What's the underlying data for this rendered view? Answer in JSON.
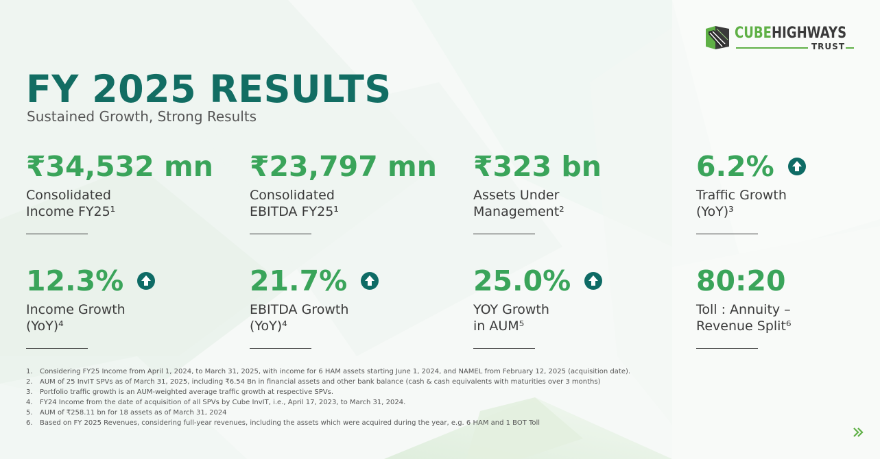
{
  "logo": {
    "word_left": "CUBE",
    "word_right": "HIGHWAYS",
    "sub": "TRUST",
    "brand_green": "#5fb046",
    "brand_dark": "#3a3a3a"
  },
  "header": {
    "title": "FY 2025 RESULTS",
    "subtitle": "Sustained Growth, Strong Results",
    "title_color": "#126d63"
  },
  "metrics": [
    {
      "value": "₹34,532 mn",
      "label_line1": "Consolidated",
      "label_line2": "Income FY25¹",
      "arrow": false
    },
    {
      "value": "₹23,797 mn",
      "label_line1": "Consolidated",
      "label_line2": "EBITDA FY25¹",
      "arrow": false
    },
    {
      "value": "₹323 bn",
      "label_line1": "Assets Under",
      "label_line2": "Management²",
      "arrow": false
    },
    {
      "value": "6.2%",
      "label_line1": "Traffic Growth",
      "label_line2": "(YoY)³",
      "arrow": true
    },
    {
      "value": "12.3%",
      "label_line1": "Income Growth",
      "label_line2": "(YoY)⁴",
      "arrow": true
    },
    {
      "value": "21.7%",
      "label_line1": "EBITDA Growth",
      "label_line2": "(YoY)⁴",
      "arrow": true
    },
    {
      "value": "25.0%",
      "label_line1": "YOY Growth",
      "label_line2": "in AUM⁵",
      "arrow": true
    },
    {
      "value": "80:20",
      "label_line1": "Toll : Annuity –",
      "label_line2": "Revenue Split⁶",
      "arrow": false
    }
  ],
  "colors": {
    "value_green": "#3aa45a",
    "arrow_teal": "#0e6b65",
    "next_green": "#5fb046"
  },
  "icons": {
    "arrow": "arrow-up-circle-icon",
    "next": "double-chevron-right-icon"
  },
  "footnotes": [
    {
      "num": "1.",
      "text": "Considering FY25 Income from April 1, 2024, to March 31, 2025, with income for 6 HAM assets starting June 1, 2024, and NAMEL from February 12, 2025 (acquisition date)."
    },
    {
      "num": "2.",
      "text": "AUM of 25 InvIT SPVs as of March 31, 2025, including ₹6.54 Bn in financial assets and other bank balance (cash & cash equivalents with maturities over 3 months)"
    },
    {
      "num": "3.",
      "text": "Portfolio traffic growth is an AUM-weighted average traffic growth at respective SPVs."
    },
    {
      "num": "4.",
      "text": "FY24 Income from the date of acquisition of all SPVs by Cube InvIT, i.e., April 17, 2023, to March 31, 2024."
    },
    {
      "num": "5.",
      "text": "AUM of ₹258.11 bn for 18 assets as of March 31, 2024"
    },
    {
      "num": "6.",
      "text": "Based on FY 2025 Revenues, considering full-year revenues, including the assets which were acquired during the year, e.g. 6 HAM and 1 BOT Toll"
    }
  ]
}
